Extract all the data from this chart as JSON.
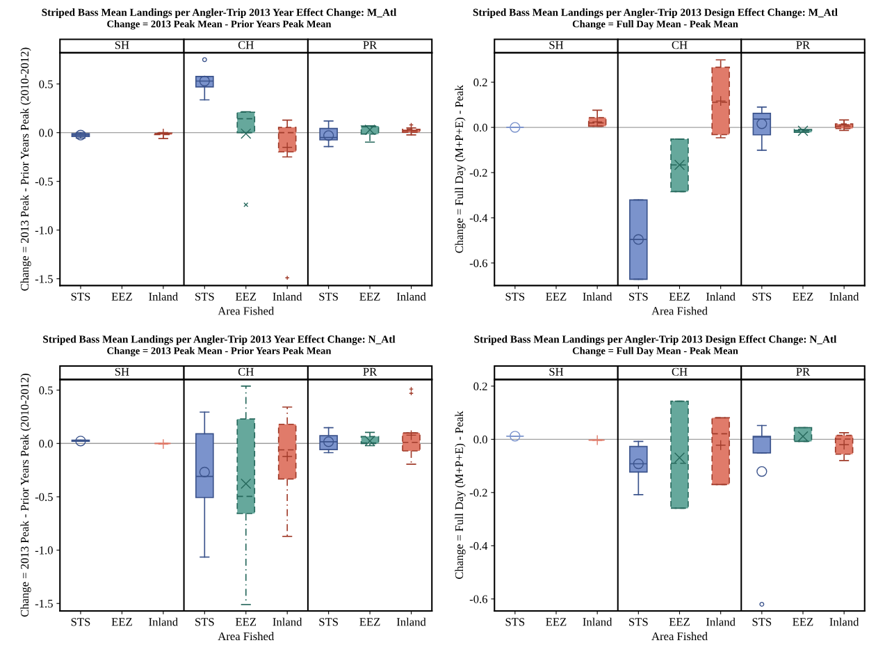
{
  "chart_data": [
    {
      "type": "box",
      "title": "Striped Bass Mean Landings per Angler-Trip 2013 Year Effect Change: M_Atl",
      "subtitle": "Change = 2013 Peak Mean - Prior Years Peak Mean",
      "xlabel": "Area Fished",
      "ylabel": "Change = 2013 Peak - Prior Years Peak (2010-2012)",
      "categories": [
        "STS",
        "EEZ",
        "Inland",
        "STS",
        "EEZ",
        "Inland",
        "STS",
        "EEZ",
        "Inland"
      ],
      "annotations": [
        "SH",
        "CH",
        "PR"
      ],
      "ylim": [
        -1.57,
        0.82
      ],
      "yticks": [
        {
          "value": -1.5,
          "label": "-1.5"
        },
        {
          "value": -1.0,
          "label": "-1.0"
        },
        {
          "value": -0.5,
          "label": "-0.5"
        },
        {
          "value": 0.0,
          "label": "0.0"
        },
        {
          "value": 0.5,
          "label": "0.5"
        }
      ],
      "ref_lines": [
        {
          "axis": "y",
          "value": 0,
          "color": "#a0a0a0"
        }
      ],
      "grid": false,
      "series": [
        {
          "color": "#7b93cc",
          "line_style": "solid",
          "marker": "circle",
          "boxes": [
            {
              "low": -0.055,
              "q1": -0.04,
              "median": -0.025,
              "q3": -0.01,
              "high": 0.0,
              "mean": -0.025
            },
            null,
            null,
            {
              "low": 0.337,
              "q1": 0.47,
              "median": 0.53,
              "q3": 0.577,
              "high": 0.577,
              "mean": 0.53,
              "outliers": [
                0.75
              ]
            },
            null,
            null,
            {
              "low": -0.143,
              "q1": -0.074,
              "median": -0.05,
              "q3": 0.043,
              "high": 0.12,
              "mean": -0.03
            },
            null,
            null
          ]
        },
        {
          "color": "#66a89c",
          "line_style": "dashed",
          "marker": "x",
          "boxes": [
            null,
            null,
            null,
            null,
            {
              "low": 0.0,
              "q1": 0.0,
              "median": 0.143,
              "q3": 0.21,
              "high": 0.215,
              "mean": -0.01,
              "outliers": [
                -0.74
              ]
            },
            null,
            null,
            {
              "low": -0.097,
              "q1": -0.014,
              "median": 0.06,
              "q3": 0.069,
              "high": 0.07,
              "mean": 0.03
            },
            null
          ]
        },
        {
          "color": "#e07b6a",
          "line_style": "dashed",
          "marker": "cross",
          "boxes": [
            null,
            null,
            {
              "low": -0.06,
              "q1": -0.02,
              "median": -0.01,
              "q3": -0.005,
              "high": 0.0,
              "mean": -0.01
            },
            null,
            null,
            {
              "low": -0.249,
              "q1": -0.197,
              "median": 0.0,
              "q3": 0.054,
              "high": 0.129,
              "mean": -0.151,
              "outliers": [
                -1.49
              ]
            },
            null,
            null,
            {
              "low": -0.023,
              "q1": 0.003,
              "median": 0.02,
              "q3": 0.034,
              "high": 0.049,
              "mean": 0.02,
              "outliers": [
                0.08
              ]
            }
          ]
        }
      ]
    },
    {
      "type": "box",
      "title": "Striped Bass Mean Landings per Angler-Trip 2013 Design Effect Change: M_Atl",
      "subtitle": "Change = Full Day Mean - Peak Mean",
      "xlabel": "Area Fished",
      "ylabel": "Change = Full Day (M+P+E) - Peak",
      "categories": [
        "STS",
        "EEZ",
        "Inland",
        "STS",
        "EEZ",
        "Inland",
        "STS",
        "EEZ",
        "Inland"
      ],
      "annotations": [
        "SH",
        "CH",
        "PR"
      ],
      "ylim": [
        -0.7,
        0.33
      ],
      "yticks": [
        {
          "value": -0.6,
          "label": "-0.6"
        },
        {
          "value": -0.4,
          "label": "-0.4"
        },
        {
          "value": -0.2,
          "label": "-0.2"
        },
        {
          "value": 0.0,
          "label": "0.0"
        },
        {
          "value": 0.2,
          "label": "0.2"
        }
      ],
      "ref_lines": [
        {
          "axis": "y",
          "value": 0,
          "color": "#a0a0a0"
        }
      ],
      "grid": false,
      "series": [
        {
          "color": "#7b93cc",
          "line_style": "solid",
          "marker": "circle",
          "boxes": [
            {
              "low": 0.0,
              "q1": 0.0,
              "median": 0.0,
              "q3": 0.0,
              "high": 0.0,
              "mean": 0.0
            },
            null,
            null,
            {
              "low": -0.672,
              "q1": -0.672,
              "median": -0.496,
              "q3": -0.321,
              "high": -0.321,
              "mean": -0.496
            },
            null,
            null,
            {
              "low": -0.101,
              "q1": -0.033,
              "median": 0.037,
              "q3": 0.062,
              "high": 0.09,
              "mean": 0.016
            },
            null,
            null
          ]
        },
        {
          "color": "#66a89c",
          "line_style": "dashed",
          "marker": "x",
          "boxes": [
            null,
            null,
            null,
            null,
            {
              "low": -0.284,
              "q1": -0.284,
              "median": -0.166,
              "q3": -0.052,
              "high": -0.052,
              "mean": -0.166
            },
            null,
            null,
            {
              "low": -0.022,
              "q1": -0.022,
              "median": -0.015,
              "q3": -0.009,
              "high": -0.009,
              "mean": -0.015
            },
            null
          ]
        },
        {
          "color": "#e07b6a",
          "line_style": "dashed",
          "marker": "cross",
          "boxes": [
            null,
            null,
            {
              "low": 0.005,
              "q1": 0.005,
              "median": 0.02,
              "q3": 0.043,
              "high": 0.076,
              "mean": 0.024
            },
            null,
            null,
            {
              "low": -0.046,
              "q1": -0.032,
              "median": 0.111,
              "q3": 0.266,
              "high": 0.299,
              "mean": 0.117
            },
            null,
            null,
            {
              "low": -0.013,
              "q1": -0.005,
              "median": 0.005,
              "q3": 0.015,
              "high": 0.033,
              "mean": 0.011
            }
          ]
        }
      ]
    },
    {
      "type": "box",
      "title": "Striped Bass Mean Landings per Angler-Trip 2013 Year Effect Change: N_Atl",
      "subtitle": "Change = 2013 Peak Mean - Prior Years Peak Mean",
      "xlabel": "Area Fished",
      "ylabel": "Change = 2013 Peak - Prior Years Peak (2010-2012)",
      "categories": [
        "STS",
        "EEZ",
        "Inland",
        "STS",
        "EEZ",
        "Inland",
        "STS",
        "EEZ",
        "Inland"
      ],
      "annotations": [
        "SH",
        "CH",
        "PR"
      ],
      "ylim": [
        -1.57,
        0.6
      ],
      "yticks": [
        {
          "value": -1.5,
          "label": "-1.5"
        },
        {
          "value": -1.0,
          "label": "-1.0"
        },
        {
          "value": -0.5,
          "label": "-0.5"
        },
        {
          "value": 0.0,
          "label": "0.0"
        },
        {
          "value": 0.5,
          "label": "0.5"
        }
      ],
      "ref_lines": [
        {
          "axis": "y",
          "value": 0,
          "color": "#a0a0a0"
        }
      ],
      "grid": false,
      "series": [
        {
          "color": "#7b93cc",
          "line_style": "solid",
          "marker": "circle",
          "boxes": [
            {
              "low": 0.02,
              "q1": 0.02,
              "median": 0.025,
              "q3": 0.03,
              "high": 0.03,
              "mean": 0.023
            },
            null,
            null,
            {
              "low": -1.065,
              "q1": -0.507,
              "median": -0.309,
              "q3": 0.091,
              "high": 0.294,
              "mean": -0.268
            },
            null,
            null,
            {
              "low": -0.086,
              "q1": -0.057,
              "median": 0.016,
              "q3": 0.073,
              "high": 0.148,
              "mean": 0.016
            },
            null,
            null
          ]
        },
        {
          "color": "#66a89c",
          "line_style": "dashed",
          "marker": "x",
          "boxes": [
            null,
            null,
            null,
            null,
            {
              "low": -1.51,
              "q1": -0.657,
              "median": -0.496,
              "q3": 0.229,
              "high": 0.538,
              "mean": -0.377
            },
            null,
            null,
            {
              "low": -0.021,
              "q1": 0.0,
              "median": 0.005,
              "q3": 0.065,
              "high": 0.104,
              "mean": 0.023
            },
            null
          ]
        },
        {
          "color": "#e07b6a",
          "line_style": "dashed",
          "marker": "cross",
          "boxes": [
            null,
            null,
            {
              "low": 0.0,
              "q1": 0.0,
              "median": 0.0,
              "q3": 0.0,
              "high": 0.0,
              "mean": -0.005
            },
            null,
            null,
            {
              "low": -0.871,
              "q1": -0.333,
              "median": -0.06,
              "q3": 0.18,
              "high": 0.341,
              "mean": -0.122
            },
            null,
            null,
            {
              "low": -0.195,
              "q1": -0.07,
              "median": 0.01,
              "q3": 0.099,
              "high": 0.099,
              "mean": 0.078,
              "outliers": [
                0.47,
                0.51
              ]
            }
          ]
        }
      ]
    },
    {
      "type": "box",
      "title": "Striped Bass Mean Landings per Angler-Trip 2013 Design Effect Change: N_Atl",
      "subtitle": "Change = Full Day Mean - Peak Mean",
      "xlabel": "Area Fished",
      "ylabel": "Change = Full Day (M+P+E) - Peak",
      "categories": [
        "STS",
        "EEZ",
        "Inland",
        "STS",
        "EEZ",
        "Inland",
        "STS",
        "EEZ",
        "Inland"
      ],
      "annotations": [
        "SH",
        "CH",
        "PR"
      ],
      "ylim": [
        -0.645,
        0.225
      ],
      "yticks": [
        {
          "value": -0.6,
          "label": "-0.6"
        },
        {
          "value": -0.4,
          "label": "-0.4"
        },
        {
          "value": -0.2,
          "label": "-0.2"
        },
        {
          "value": 0.0,
          "label": "0.0"
        },
        {
          "value": 0.2,
          "label": "0.2"
        }
      ],
      "ref_lines": [
        {
          "axis": "y",
          "value": 0,
          "color": "#a0a0a0"
        }
      ],
      "grid": false,
      "series": [
        {
          "color": "#7b93cc",
          "line_style": "solid",
          "marker": "circle",
          "boxes": [
            {
              "low": 0.012,
              "q1": 0.012,
              "median": 0.012,
              "q3": 0.012,
              "high": 0.012,
              "mean": 0.012
            },
            null,
            null,
            {
              "low": -0.208,
              "q1": -0.123,
              "median": -0.092,
              "q3": -0.027,
              "high": -0.008,
              "mean": -0.092
            },
            null,
            null,
            {
              "low": -0.051,
              "q1": -0.051,
              "median": 0.009,
              "q3": 0.011,
              "high": 0.052,
              "mean": -0.121,
              "outliers": [
                -0.62
              ]
            },
            null,
            null
          ]
        },
        {
          "color": "#66a89c",
          "line_style": "dashed",
          "marker": "x",
          "boxes": [
            null,
            null,
            null,
            null,
            {
              "low": -0.259,
              "q1": -0.259,
              "median": -0.09,
              "q3": 0.143,
              "high": 0.143,
              "mean": -0.069
            },
            null,
            null,
            {
              "low": -0.008,
              "q1": -0.008,
              "median": 0.044,
              "q3": 0.044,
              "high": 0.044,
              "mean": 0.011
            },
            null
          ]
        },
        {
          "color": "#e07b6a",
          "line_style": "dashed",
          "marker": "cross",
          "boxes": [
            null,
            null,
            {
              "low": -0.003,
              "q1": -0.003,
              "median": -0.003,
              "q3": -0.003,
              "high": -0.003,
              "mean": -0.003
            },
            null,
            null,
            {
              "low": -0.17,
              "q1": -0.17,
              "median": 0.021,
              "q3": 0.081,
              "high": 0.081,
              "mean": -0.022
            },
            null,
            null,
            {
              "low": -0.08,
              "q1": -0.056,
              "median": 0.001,
              "q3": 0.015,
              "high": 0.025,
              "mean": -0.02
            }
          ]
        }
      ]
    }
  ]
}
